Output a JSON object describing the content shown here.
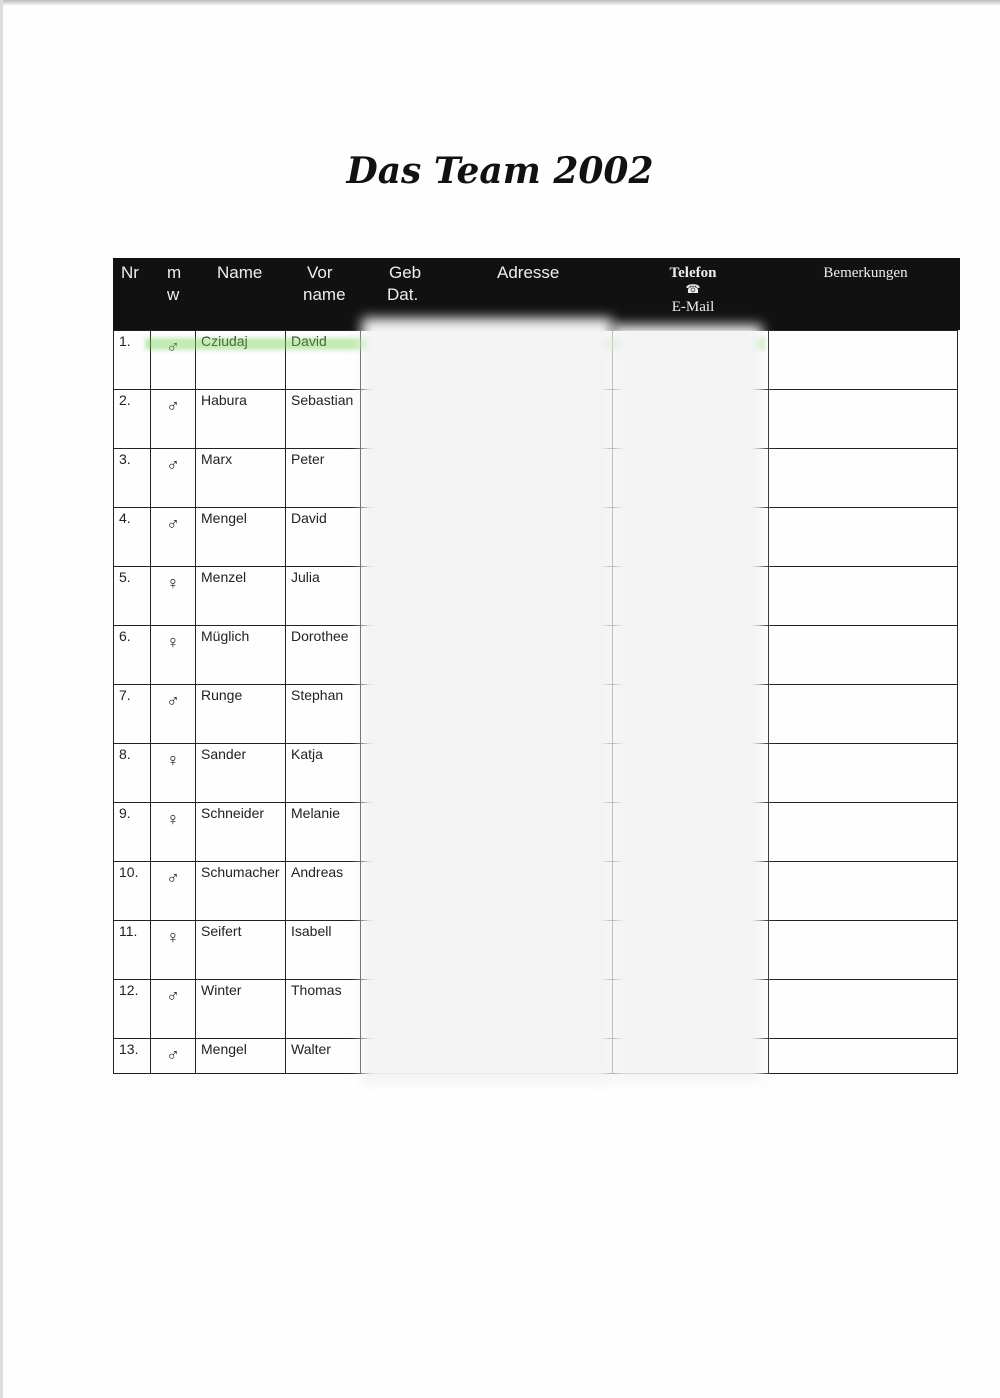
{
  "title": "Das Team 2002",
  "headers": {
    "nr": "Nr",
    "mw_m": "m",
    "mw_w": "w",
    "name": "Name",
    "vor": "Vor",
    "vorname": "name",
    "geb": "Geb",
    "dat": "Dat.",
    "adresse": "Adresse",
    "telefon": "Telefon",
    "phone_icon": "☎",
    "email": "E-Mail",
    "bemerkungen": "Bemerkungen"
  },
  "rows": [
    {
      "nr": "1.",
      "sex": "♂",
      "name": "Cziudaj",
      "vorname": "David"
    },
    {
      "nr": "2.",
      "sex": "♂",
      "name": "Habura",
      "vorname": "Sebastian"
    },
    {
      "nr": "3.",
      "sex": "♂",
      "name": "Marx",
      "vorname": "Peter"
    },
    {
      "nr": "4.",
      "sex": "♂",
      "name": "Mengel",
      "vorname": "David"
    },
    {
      "nr": "5.",
      "sex": "♀",
      "name": "Menzel",
      "vorname": "Julia"
    },
    {
      "nr": "6.",
      "sex": "♀",
      "name": "Müglich",
      "vorname": "Dorothee"
    },
    {
      "nr": "7.",
      "sex": "♂",
      "name": "Runge",
      "vorname": "Stephan"
    },
    {
      "nr": "8.",
      "sex": "♀",
      "name": "Sander",
      "vorname": "Katja"
    },
    {
      "nr": "9.",
      "sex": "♀",
      "name": "Schneider",
      "vorname": "Melanie"
    },
    {
      "nr": "10.",
      "sex": "♂",
      "name": "Schumacher",
      "vorname": "Andreas"
    },
    {
      "nr": "11.",
      "sex": "♀",
      "name": "Seifert",
      "vorname": "Isabell"
    },
    {
      "nr": "12.",
      "sex": "♂",
      "name": "Winter",
      "vorname": "Thomas"
    },
    {
      "nr": "13.",
      "sex": "♂",
      "name": "Mengel",
      "vorname": "Walter"
    }
  ],
  "colors": {
    "header_bg": "#111111",
    "highlight": "#78d25a"
  }
}
